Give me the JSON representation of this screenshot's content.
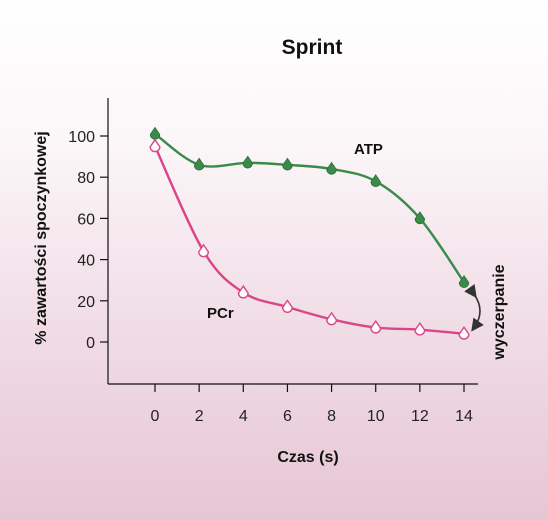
{
  "chart_data": {
    "type": "line",
    "title": "Sprint",
    "xlabel": "Czas (s)",
    "ylabel": "% zawartości spoczynkowej",
    "xlim": [
      0,
      14
    ],
    "ylim": [
      0,
      100
    ],
    "xticks": [
      "0",
      "2",
      "4",
      "6",
      "8",
      "10",
      "12",
      "14"
    ],
    "yticks": [
      "0",
      "20",
      "40",
      "60",
      "80",
      "100"
    ],
    "grid": false,
    "series": [
      {
        "name": "ATP",
        "color": "#3a8a4a",
        "marker": "filled-circle",
        "x": [
          0,
          2,
          4.2,
          6,
          8,
          10,
          12,
          14
        ],
        "y": [
          101,
          86,
          87,
          86,
          84,
          78,
          60,
          29
        ]
      },
      {
        "name": "PCr",
        "color": "#d9468a",
        "marker": "open-circle",
        "x": [
          0,
          2.2,
          4,
          6,
          8,
          10,
          12,
          14
        ],
        "y": [
          95,
          44,
          24,
          17,
          11,
          7,
          6,
          4
        ]
      }
    ],
    "annotations": [
      {
        "text": "wyczerpanie",
        "at_x": 14,
        "arrow_between_y": [
          4,
          29
        ]
      }
    ]
  }
}
